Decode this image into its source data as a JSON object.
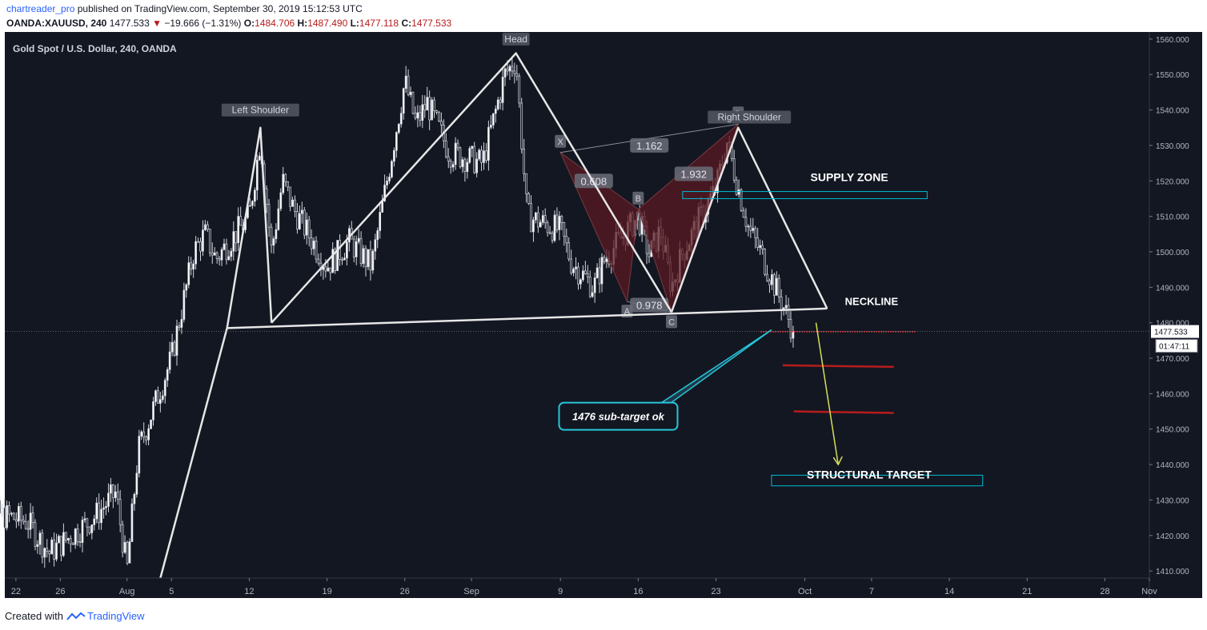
{
  "header": {
    "username": "chartreader_pro",
    "published_text": "published on TradingView.com, September 30, 2019 15:12:53 UTC",
    "symbol": "OANDA:XAUUSD, 240",
    "last": "1477.533",
    "change": "−19.666 (−1.31%)",
    "o_label": "O:",
    "o_value": "1484.706",
    "h_label": "H:",
    "h_value": "1487.490",
    "l_label": "L:",
    "l_value": "1477.118",
    "c_label": "C:",
    "c_value": "1477.533"
  },
  "footer": {
    "created_with": "Created with",
    "brand": "TradingView"
  },
  "colors": {
    "background": "#131722",
    "pattern_lines": "#e6e6e6",
    "harmonic_fill": "#5a1a22",
    "zone_box": "#00bcd4",
    "target_lines": "#b71c1c",
    "arrow": "#d4e157",
    "price_tag": "#ffffff"
  },
  "chart_data": {
    "type": "candlestick",
    "title": "Gold Spot / U.S. Dollar, 240, OANDA",
    "ylim": [
      1408,
      1562
    ],
    "y_ticks": [
      "1560.000",
      "1550.000",
      "1540.000",
      "1530.000",
      "1520.000",
      "1510.000",
      "1500.000",
      "1490.000",
      "1480.000",
      "1470.000",
      "1460.000",
      "1450.000",
      "1440.000",
      "1430.000",
      "1420.000",
      "1410.000"
    ],
    "x_ticks": [
      "22",
      "26",
      "Aug",
      "5",
      "12",
      "19",
      "26",
      "Sep",
      "9",
      "16",
      "23",
      "Oct",
      "7",
      "14",
      "21",
      "28",
      "Nov"
    ],
    "current_price": "1477.533",
    "countdown": "01:47:11",
    "price_path": [
      {
        "date": "2019-07-18",
        "price": 1440
      },
      {
        "date": "2019-07-19",
        "price": 1427
      },
      {
        "date": "2019-07-23",
        "price": 1424
      },
      {
        "date": "2019-07-25",
        "price": 1415
      },
      {
        "date": "2019-07-29",
        "price": 1425
      },
      {
        "date": "2019-07-31",
        "price": 1432
      },
      {
        "date": "2019-08-01",
        "price": 1410
      },
      {
        "date": "2019-08-02",
        "price": 1444
      },
      {
        "date": "2019-08-05",
        "price": 1470
      },
      {
        "date": "2019-08-07",
        "price": 1500
      },
      {
        "date": "2019-08-08",
        "price": 1505
      },
      {
        "date": "2019-08-09",
        "price": 1498
      },
      {
        "date": "2019-08-12",
        "price": 1510
      },
      {
        "date": "2019-08-13",
        "price": 1532
      },
      {
        "date": "2019-08-14",
        "price": 1500
      },
      {
        "date": "2019-08-15",
        "price": 1520
      },
      {
        "date": "2019-08-16",
        "price": 1512
      },
      {
        "date": "2019-08-19",
        "price": 1496
      },
      {
        "date": "2019-08-21",
        "price": 1503
      },
      {
        "date": "2019-08-23",
        "price": 1496
      },
      {
        "date": "2019-08-26",
        "price": 1548
      },
      {
        "date": "2019-08-27",
        "price": 1536
      },
      {
        "date": "2019-08-28",
        "price": 1542
      },
      {
        "date": "2019-08-30",
        "price": 1528
      },
      {
        "date": "2019-09-02",
        "price": 1525
      },
      {
        "date": "2019-09-04",
        "price": 1550
      },
      {
        "date": "2019-09-05",
        "price": 1554
      },
      {
        "date": "2019-09-06",
        "price": 1510
      },
      {
        "date": "2019-09-09",
        "price": 1506
      },
      {
        "date": "2019-09-10",
        "price": 1497
      },
      {
        "date": "2019-09-12",
        "price": 1490
      },
      {
        "date": "2019-09-13",
        "price": 1498
      },
      {
        "date": "2019-09-16",
        "price": 1510
      },
      {
        "date": "2019-09-17",
        "price": 1499
      },
      {
        "date": "2019-09-18",
        "price": 1506
      },
      {
        "date": "2019-09-19",
        "price": 1490
      },
      {
        "date": "2019-09-20",
        "price": 1500
      },
      {
        "date": "2019-09-23",
        "price": 1518
      },
      {
        "date": "2019-09-24",
        "price": 1531
      },
      {
        "date": "2019-09-25",
        "price": 1518
      },
      {
        "date": "2019-09-26",
        "price": 1506
      },
      {
        "date": "2019-09-27",
        "price": 1500
      },
      {
        "date": "2019-09-30",
        "price": 1477.5
      }
    ],
    "pattern_lines": [
      {
        "name": "uptrend",
        "points": [
          {
            "date": "2019-08-04",
            "price": 1408
          },
          {
            "date": "2019-08-10",
            "price": 1478.5
          }
        ]
      },
      {
        "name": "left-shoulder",
        "points": [
          {
            "date": "2019-08-10",
            "price": 1478.5
          },
          {
            "date": "2019-08-13",
            "price": 1535
          },
          {
            "date": "2019-08-14",
            "price": 1480
          }
        ]
      },
      {
        "name": "head",
        "points": [
          {
            "date": "2019-08-14",
            "price": 1480
          },
          {
            "date": "2019-09-05",
            "price": 1556
          },
          {
            "date": "2019-09-19",
            "price": 1483
          }
        ]
      },
      {
        "name": "right-shoulder",
        "points": [
          {
            "date": "2019-09-19",
            "price": 1483
          },
          {
            "date": "2019-09-25",
            "price": 1535
          },
          {
            "date": "2019-10-03",
            "price": 1484
          }
        ]
      },
      {
        "name": "neckline",
        "points": [
          {
            "date": "2019-08-10",
            "price": 1478.5
          },
          {
            "date": "2019-10-03",
            "price": 1484
          }
        ]
      }
    ],
    "labels": [
      {
        "text": "Head",
        "date": "2019-09-05",
        "price": 1560
      },
      {
        "text": "Left Shoulder",
        "date": "2019-08-13",
        "price": 1540
      },
      {
        "text": "Right Shoulder",
        "date": "2019-09-26",
        "price": 1538
      },
      {
        "text": "SUPPLY ZONE",
        "date": "2019-10-05",
        "price": 1520
      },
      {
        "text": "NECKLINE",
        "date": "2019-10-07",
        "price": 1485
      }
    ],
    "harmonic": {
      "points": [
        {
          "label": "X",
          "date": "2019-09-09",
          "price": 1528
        },
        {
          "label": "A",
          "date": "2019-09-15",
          "price": 1486
        },
        {
          "label": "B",
          "date": "2019-09-16",
          "price": 1512
        },
        {
          "label": "C",
          "date": "2019-09-19",
          "price": 1483
        },
        {
          "label": "D",
          "date": "2019-09-25",
          "price": 1536
        }
      ],
      "ratios": [
        {
          "text": "0.608",
          "date": "2019-09-12",
          "price": 1520
        },
        {
          "text": "1.162",
          "date": "2019-09-17",
          "price": 1530
        },
        {
          "text": "1.932",
          "date": "2019-09-21",
          "price": 1522
        },
        {
          "text": "0.978",
          "date": "2019-09-17",
          "price": 1485
        }
      ]
    },
    "zones": [
      {
        "name": "supply-zone",
        "from": "2019-09-20",
        "to": "2019-10-12",
        "top": 1517,
        "bottom": 1515
      },
      {
        "name": "structural-target",
        "from": "2019-09-28",
        "to": "2019-10-17",
        "top": 1437,
        "bottom": 1434
      }
    ],
    "target_lines": [
      {
        "from": "2019-09-27",
        "to": "2019-10-11",
        "price": 1477.5,
        "style": "dotted"
      },
      {
        "from": "2019-09-29",
        "to": "2019-10-09",
        "price": 1468
      },
      {
        "from": "2019-09-30",
        "to": "2019-10-09",
        "price": 1455
      }
    ],
    "arrow": {
      "from": {
        "date": "2019-10-02",
        "price": 1480
      },
      "to": {
        "date": "2019-10-04",
        "price": 1440
      }
    },
    "callout": {
      "text": "1476 sub-target ok",
      "date": "2019-09-15",
      "price": 1457,
      "pointer": {
        "date": "2019-09-28",
        "price": 1478
      }
    },
    "structural_target_text": "STRUCTURAL TARGET"
  }
}
